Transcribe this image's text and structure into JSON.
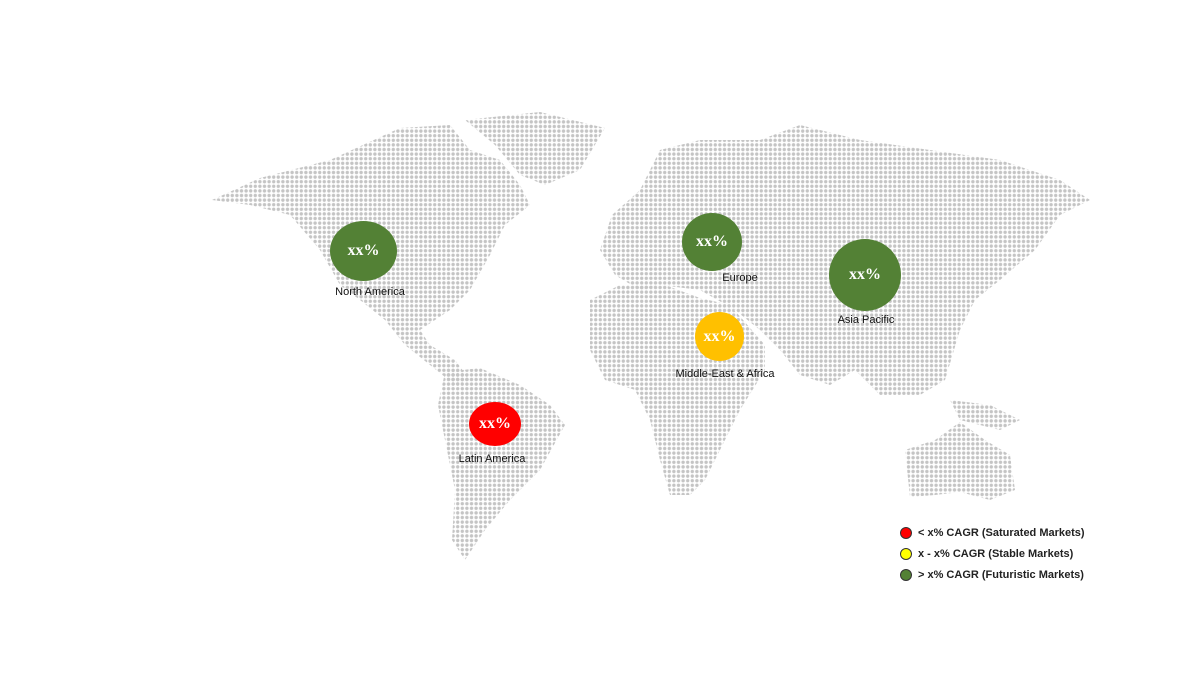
{
  "regions": [
    {
      "name": "North America",
      "value": "xx%",
      "color": "#538135"
    },
    {
      "name": "Europe",
      "value": "xx%",
      "color": "#538135"
    },
    {
      "name": "Asia Pacific",
      "value": "xx%",
      "color": "#538135"
    },
    {
      "name": "Middle-East & Africa",
      "value": "xx%",
      "color": "#FFC000"
    },
    {
      "name": "Latin America",
      "value": "xx%",
      "color": "#FF0000"
    }
  ],
  "legend": [
    {
      "label": "< x% CAGR (Saturated Markets)",
      "color": "#FF0000"
    },
    {
      "label": "x - x% CAGR (Stable Markets)",
      "color": "#FFFF00"
    },
    {
      "label": "> x% CAGR (Futuristic Markets)",
      "color": "#538135"
    }
  ]
}
